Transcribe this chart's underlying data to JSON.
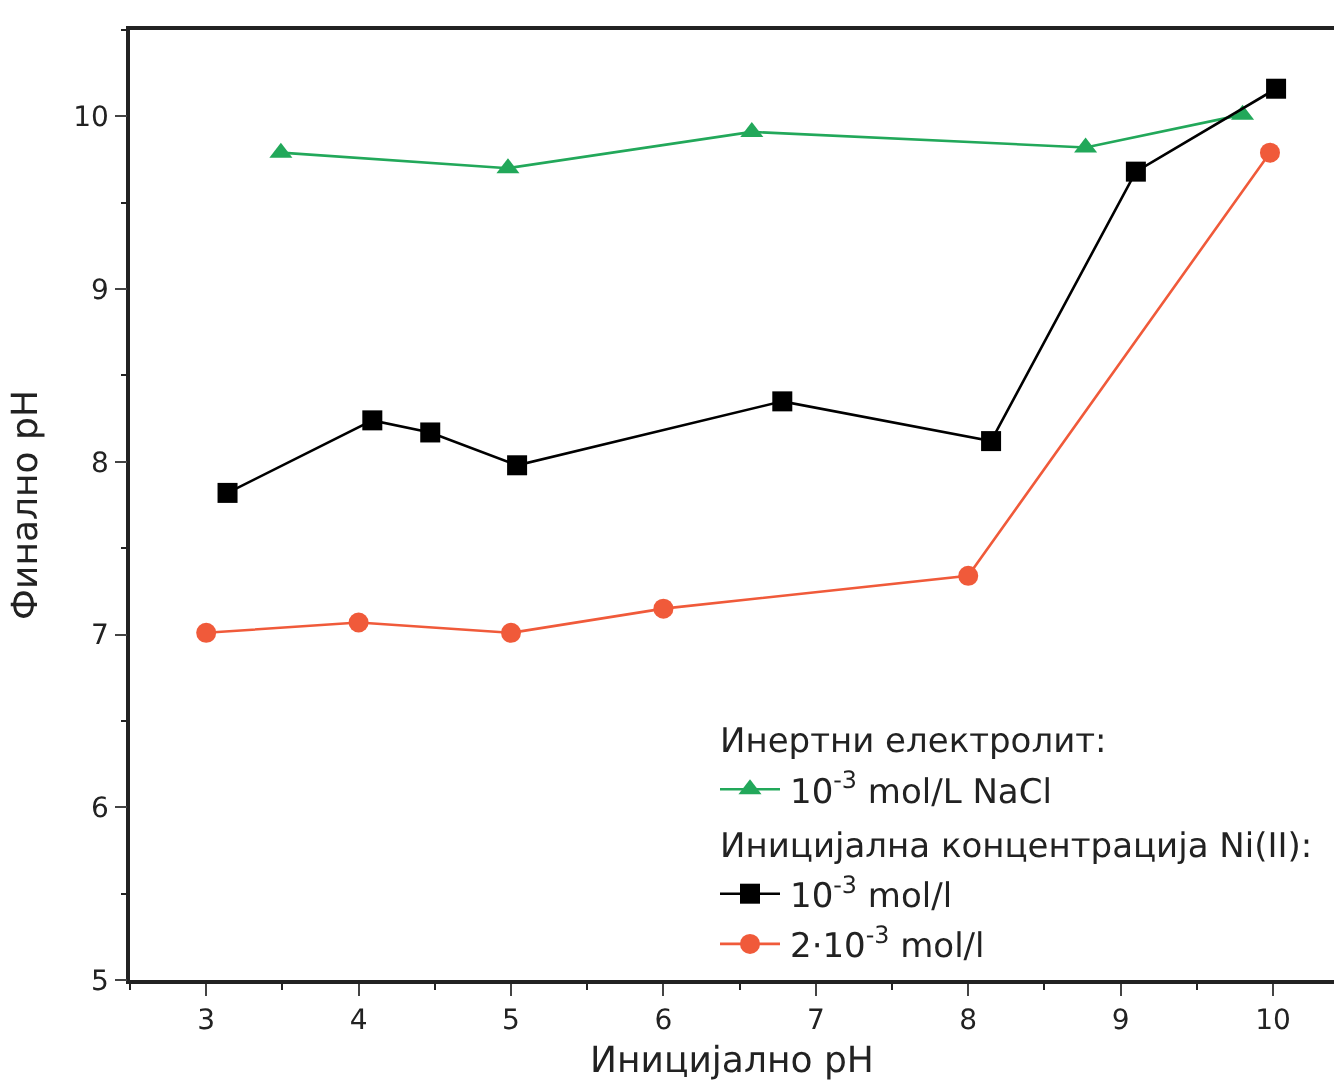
{
  "chart_data": {
    "type": "line",
    "xlabel": "Иницијално pH",
    "ylabel": "Финално pH",
    "legend_title": "Инертни електролит:",
    "annotations": [
      "Иницијална концентрација Ni(II):"
    ],
    "xlim": [
      2.5,
      10.4
    ],
    "xticks": [
      3,
      4,
      5,
      6,
      7,
      8,
      9,
      10
    ],
    "ylim": [
      5,
      10.5
    ],
    "yticks": [
      5,
      6,
      7,
      8,
      9,
      10
    ],
    "grid": false,
    "legend": "bottom right",
    "line_style": "solid",
    "series": [
      {
        "name": "10$^{-3}$ mol/L NaCl",
        "color": "#22a85a",
        "marker": "triangle",
        "x": [
          3.49,
          4.98,
          6.58,
          8.77,
          9.8
        ],
        "values": [
          9.79,
          9.7,
          9.91,
          9.82,
          10.01
        ]
      },
      {
        "name": "10$^{-3}$ mol/l",
        "color": "#000000",
        "marker": "square",
        "x": [
          3.14,
          4.09,
          4.47,
          5.04,
          6.78,
          8.15,
          9.1,
          10.02
        ],
        "values": [
          7.82,
          8.24,
          8.17,
          7.98,
          8.35,
          8.12,
          9.68,
          10.16
        ]
      },
      {
        "name": "2·10$^{-3}$ mol/l",
        "color": "#f05a3a",
        "marker": "circle",
        "x": [
          3,
          4,
          5,
          6,
          8,
          9.98
        ],
        "values": [
          7.01,
          7.07,
          7.01,
          7.15,
          7.34,
          9.79
        ]
      }
    ]
  }
}
